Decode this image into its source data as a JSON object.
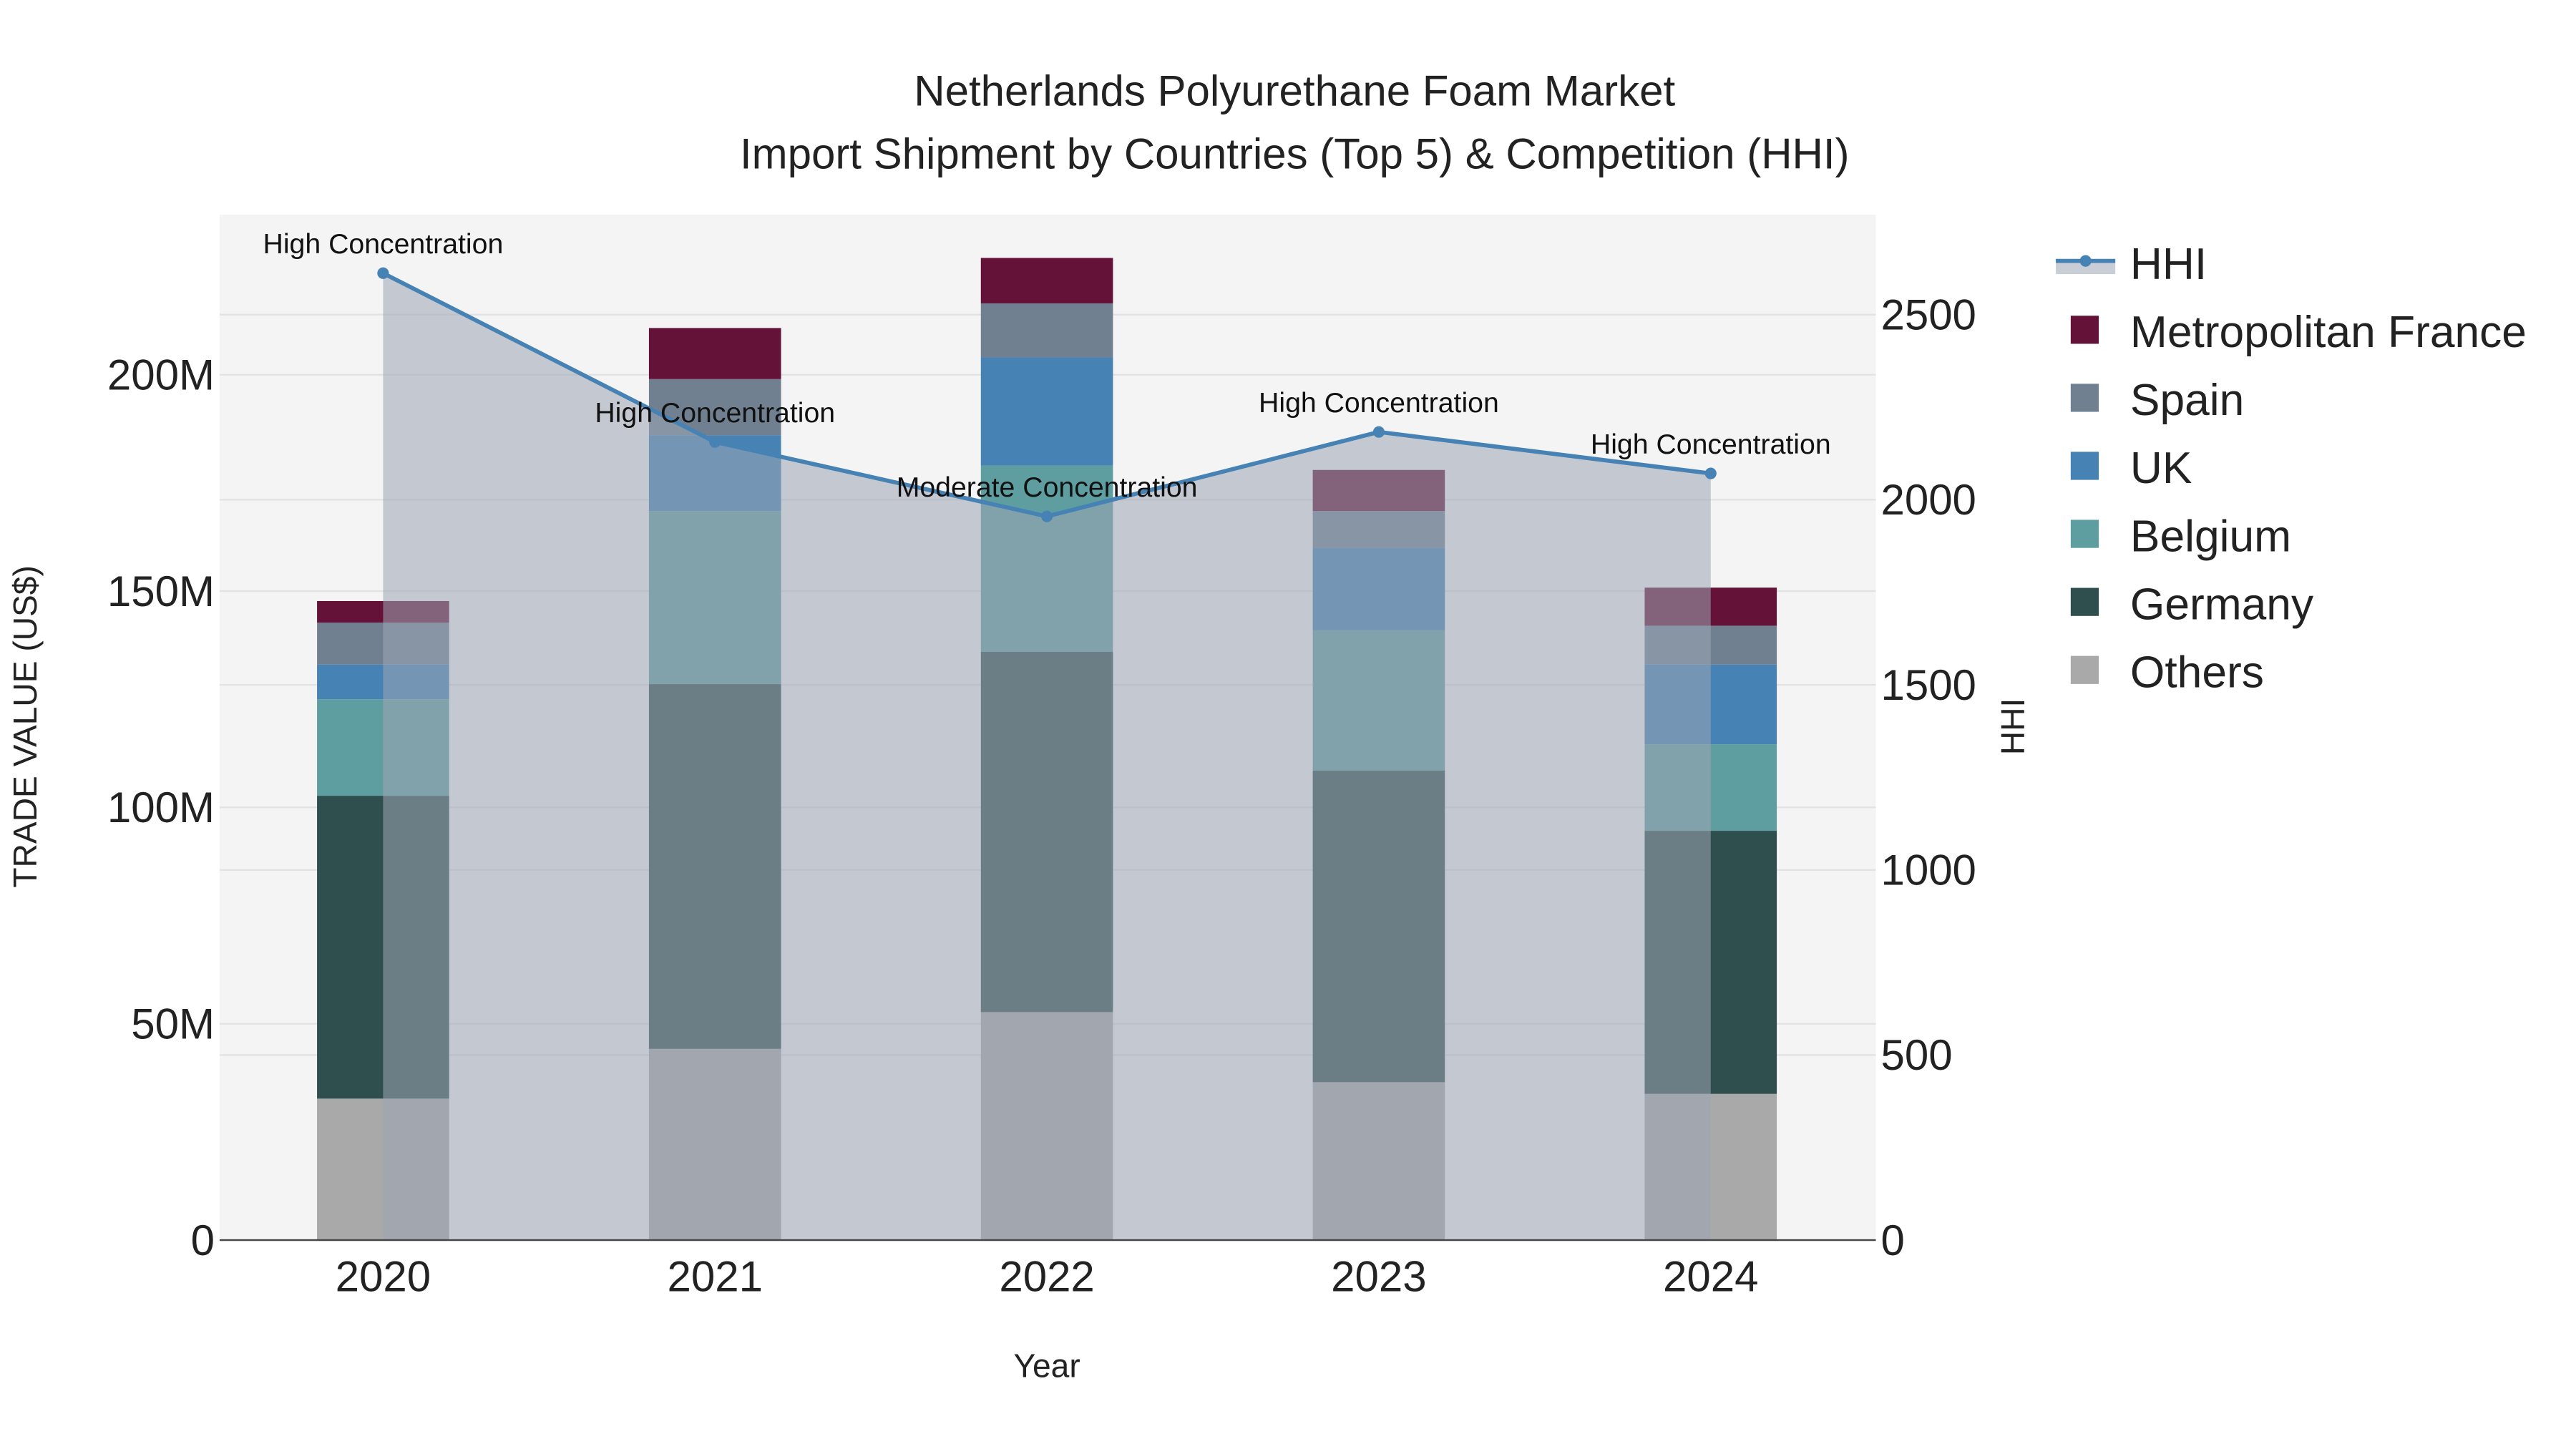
{
  "chart_data": {
    "type": "bar",
    "title": "Netherlands Polyurethane Foam Market",
    "subtitle": "Import Shipment by Countries (Top 5) & Competition (HHI)",
    "xlabel": "Year",
    "ylabel": "TRADE VALUE (US$)",
    "y2label": "HHI",
    "categories": [
      "2020",
      "2021",
      "2022",
      "2023",
      "2024"
    ],
    "ylim": [
      0,
      237
    ],
    "y_unit": "M",
    "yticks": [
      0,
      50,
      100,
      150,
      200
    ],
    "ytick_labels": [
      "0",
      "50M",
      "100M",
      "150M",
      "200M"
    ],
    "y2lim": [
      0,
      2770
    ],
    "y2ticks": [
      0,
      500,
      1000,
      1500,
      2000,
      2500
    ],
    "y2tick_labels": [
      "0",
      "500",
      "1000",
      "1500",
      "2000",
      "2500"
    ],
    "stacked": true,
    "series": [
      {
        "name": "Others",
        "color": "#A9A9A9",
        "values": [
          32.7,
          44.2,
          52.7,
          36.5,
          33.8
        ]
      },
      {
        "name": "Germany",
        "color": "#2F4F4F",
        "values": [
          70.0,
          84.3,
          83.3,
          72.0,
          60.8
        ]
      },
      {
        "name": "Belgium",
        "color": "#5F9EA0",
        "values": [
          22.3,
          40.0,
          43.0,
          32.5,
          20.0
        ]
      },
      {
        "name": "UK",
        "color": "#4682B4",
        "values": [
          8.0,
          17.5,
          25.0,
          19.0,
          18.4
        ]
      },
      {
        "name": "Spain",
        "color": "#708090",
        "values": [
          9.7,
          13.0,
          12.5,
          8.5,
          9.0
        ]
      },
      {
        "name": "Metropolitan France",
        "color": "#641237",
        "values": [
          5.0,
          11.8,
          10.5,
          9.5,
          8.8
        ]
      }
    ],
    "hhi": {
      "name": "HHI",
      "color": "#4682B4",
      "values": [
        2612,
        2156,
        1955,
        2183,
        2071
      ],
      "labels": [
        "High Concentration",
        "High Concentration",
        "Moderate Concentration",
        "High Concentration",
        "High Concentration"
      ]
    },
    "legend_order": [
      "HHI",
      "Metropolitan France",
      "Spain",
      "UK",
      "Belgium",
      "Germany",
      "Others"
    ],
    "legend_position": "right",
    "grid": true
  }
}
